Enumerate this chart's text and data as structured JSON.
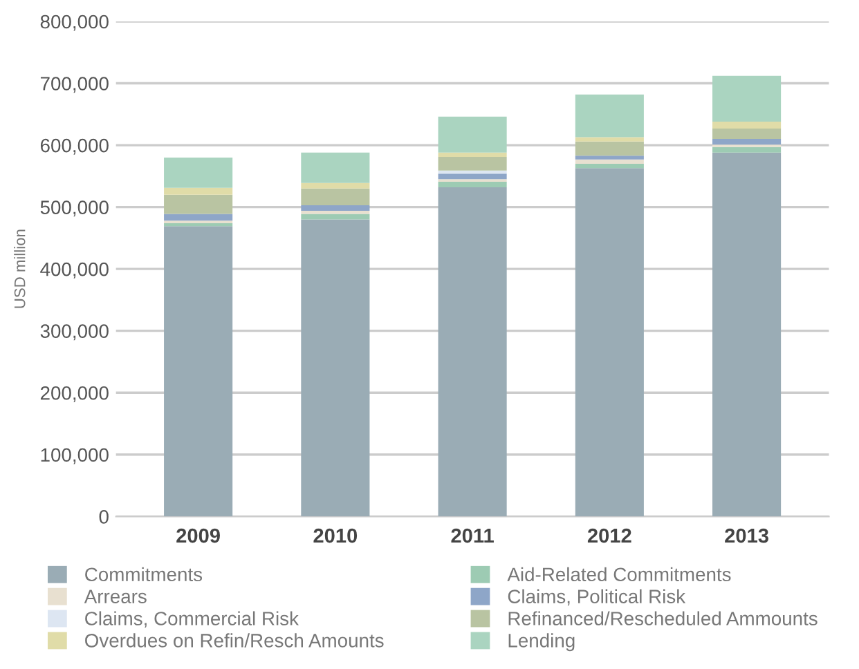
{
  "chart_data": {
    "type": "bar",
    "stacked": true,
    "ylabel": "USD million",
    "categories": [
      "2009",
      "2010",
      "2011",
      "2012",
      "2013"
    ],
    "series": [
      {
        "name": "Commitments",
        "color": "#9aacb5",
        "values": [
          469000,
          480000,
          532000,
          563000,
          588000
        ]
      },
      {
        "name": "Aid-Related Commitments",
        "color": "#9dcbb3",
        "values": [
          5000,
          9000,
          9000,
          7000,
          9000
        ]
      },
      {
        "name": "Arrears",
        "color": "#e8e0d0",
        "values": [
          4000,
          5000,
          4000,
          7000,
          4000
        ]
      },
      {
        "name": "Claims, Political Risk",
        "color": "#8ea6c8",
        "values": [
          11000,
          9000,
          9000,
          6000,
          9000
        ]
      },
      {
        "name": "Claims, Commercial Risk",
        "color": "#dde6f2",
        "values": [
          null,
          null,
          5000,
          null,
          null
        ]
      },
      {
        "name": "Refinanced/Rescheduled Ammounts",
        "color": "#b9c4a2",
        "values": [
          31000,
          27000,
          22000,
          23000,
          17000
        ]
      },
      {
        "name": "Overdues on Refin/Resch Amounts",
        "color": "#e0dca8",
        "values": [
          11000,
          9000,
          7000,
          7000,
          11000
        ]
      },
      {
        "name": "Lending",
        "color": "#aad4c0",
        "values": [
          49000,
          49000,
          58000,
          69000,
          74000
        ]
      }
    ],
    "ylim": [
      0,
      800000
    ],
    "yticks": [
      {
        "value": 0,
        "label": "0"
      },
      {
        "value": 100000,
        "label": "100,000"
      },
      {
        "value": 200000,
        "label": "200,000"
      },
      {
        "value": 300000,
        "label": "300,000"
      },
      {
        "value": 400000,
        "label": "400,000"
      },
      {
        "value": 500000,
        "label": "500,000"
      },
      {
        "value": 600000,
        "label": "600,000"
      },
      {
        "value": 700000,
        "label": "700,000"
      },
      {
        "value": 800000,
        "label": "800,000"
      }
    ],
    "grid": "y",
    "legend": "bottom"
  }
}
